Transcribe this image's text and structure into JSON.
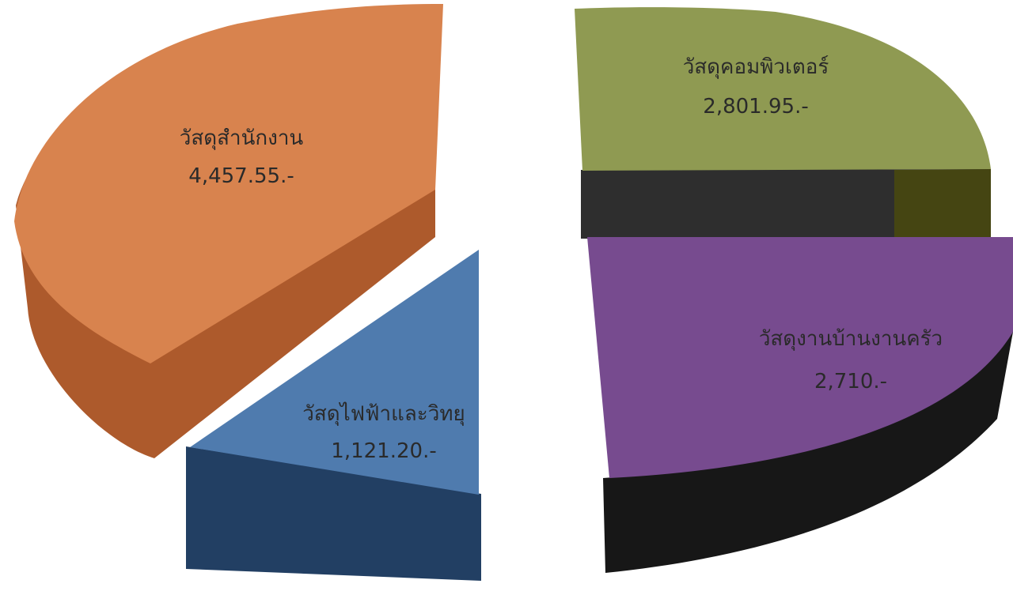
{
  "chart_data": {
    "type": "pie",
    "title": "",
    "grid": false,
    "legend": "none",
    "labels": [
      "วัสดุสำนักงาน",
      "วัสดุไฟฟ้าและวิทยุ",
      "วัสดุคอมพิวเตอร์",
      "วัสดุงานบ้านงานครัว"
    ],
    "values": [
      4457.55,
      1121.2,
      2801.95,
      2710
    ],
    "value_labels": [
      "4,457.55.-",
      "1,121.20.-",
      "2,801.95.-",
      "2,710.-"
    ],
    "colors": [
      "#d8834e",
      "#4f7bae",
      "#8f9a52",
      "#774b8f"
    ]
  }
}
